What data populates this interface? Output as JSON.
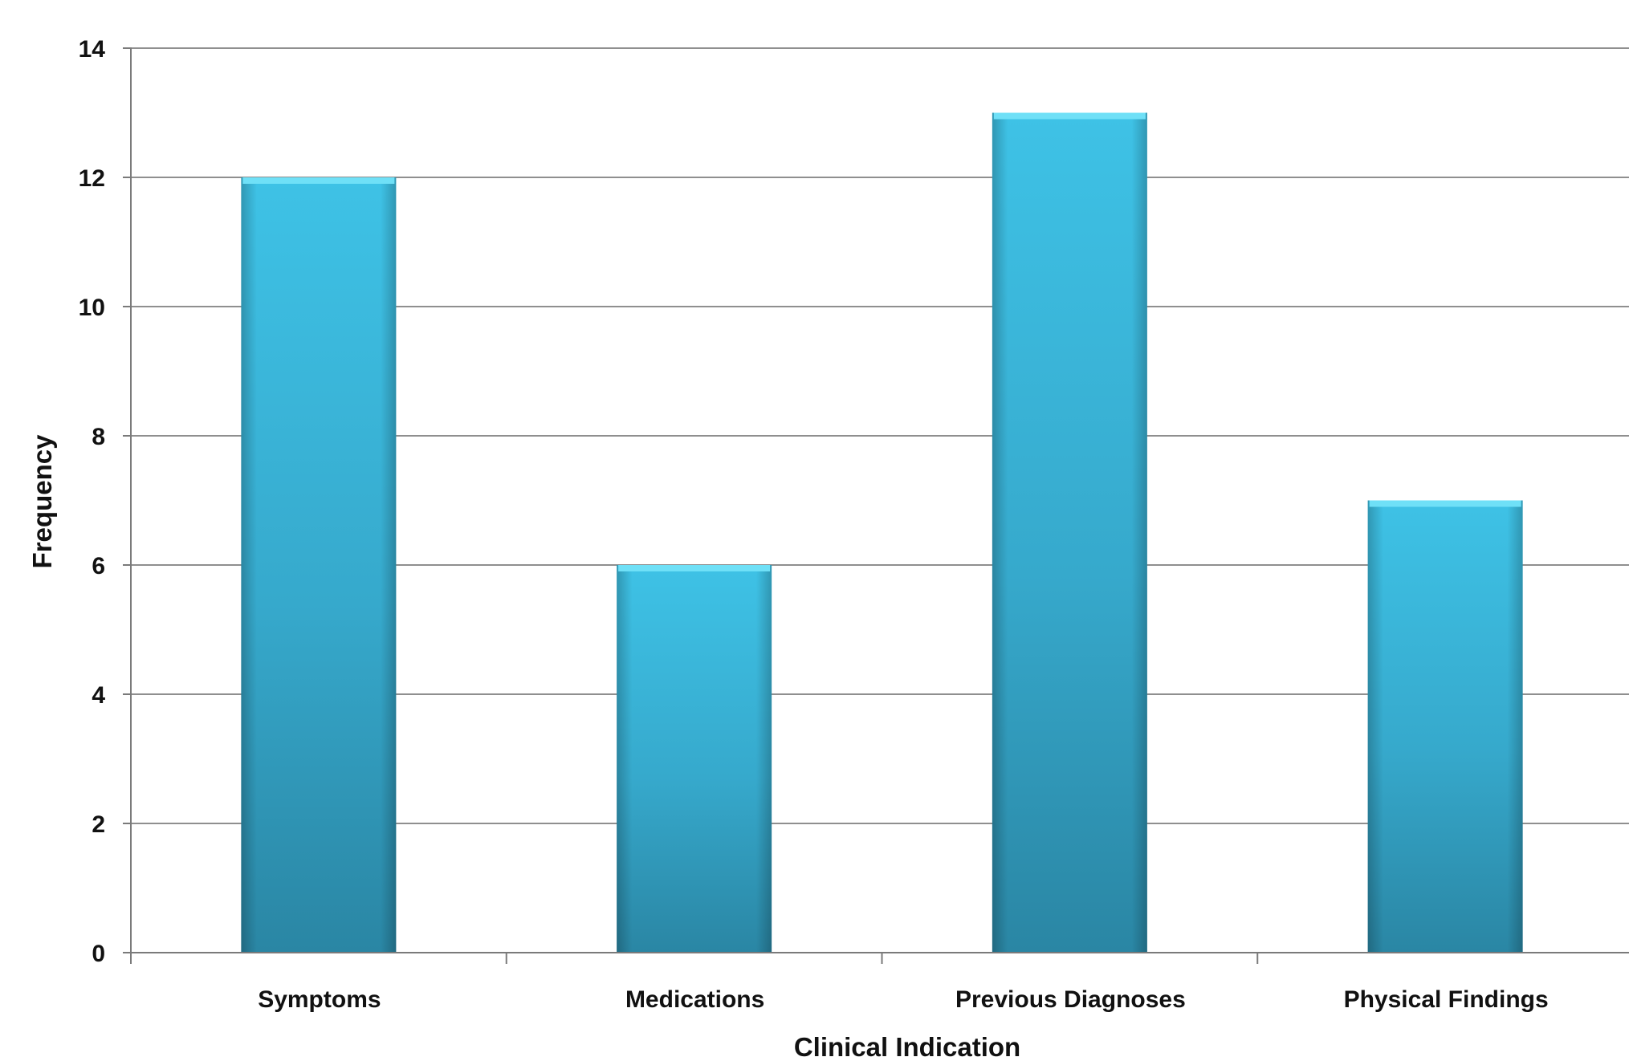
{
  "chart_data": {
    "type": "bar",
    "title": "",
    "xlabel": "Clinical Indication",
    "ylabel": "Frequency",
    "categories": [
      "Symptoms",
      "Medications",
      "Previous Diagnoses",
      "Physical Findings"
    ],
    "values": [
      12,
      6,
      13,
      7
    ],
    "ylim": [
      0,
      14
    ],
    "yticks": [
      0,
      2,
      4,
      6,
      8,
      10,
      12,
      14
    ],
    "grid": true,
    "legend": "none",
    "colors": {
      "bar_top": "#3ec2e6",
      "bar_mid": "#36a9cc",
      "bar_bottom": "#2a86a4",
      "bar_cap": "#6fe0f7",
      "grid": "#8f8f8f",
      "axis": "#7a7a7a"
    }
  }
}
